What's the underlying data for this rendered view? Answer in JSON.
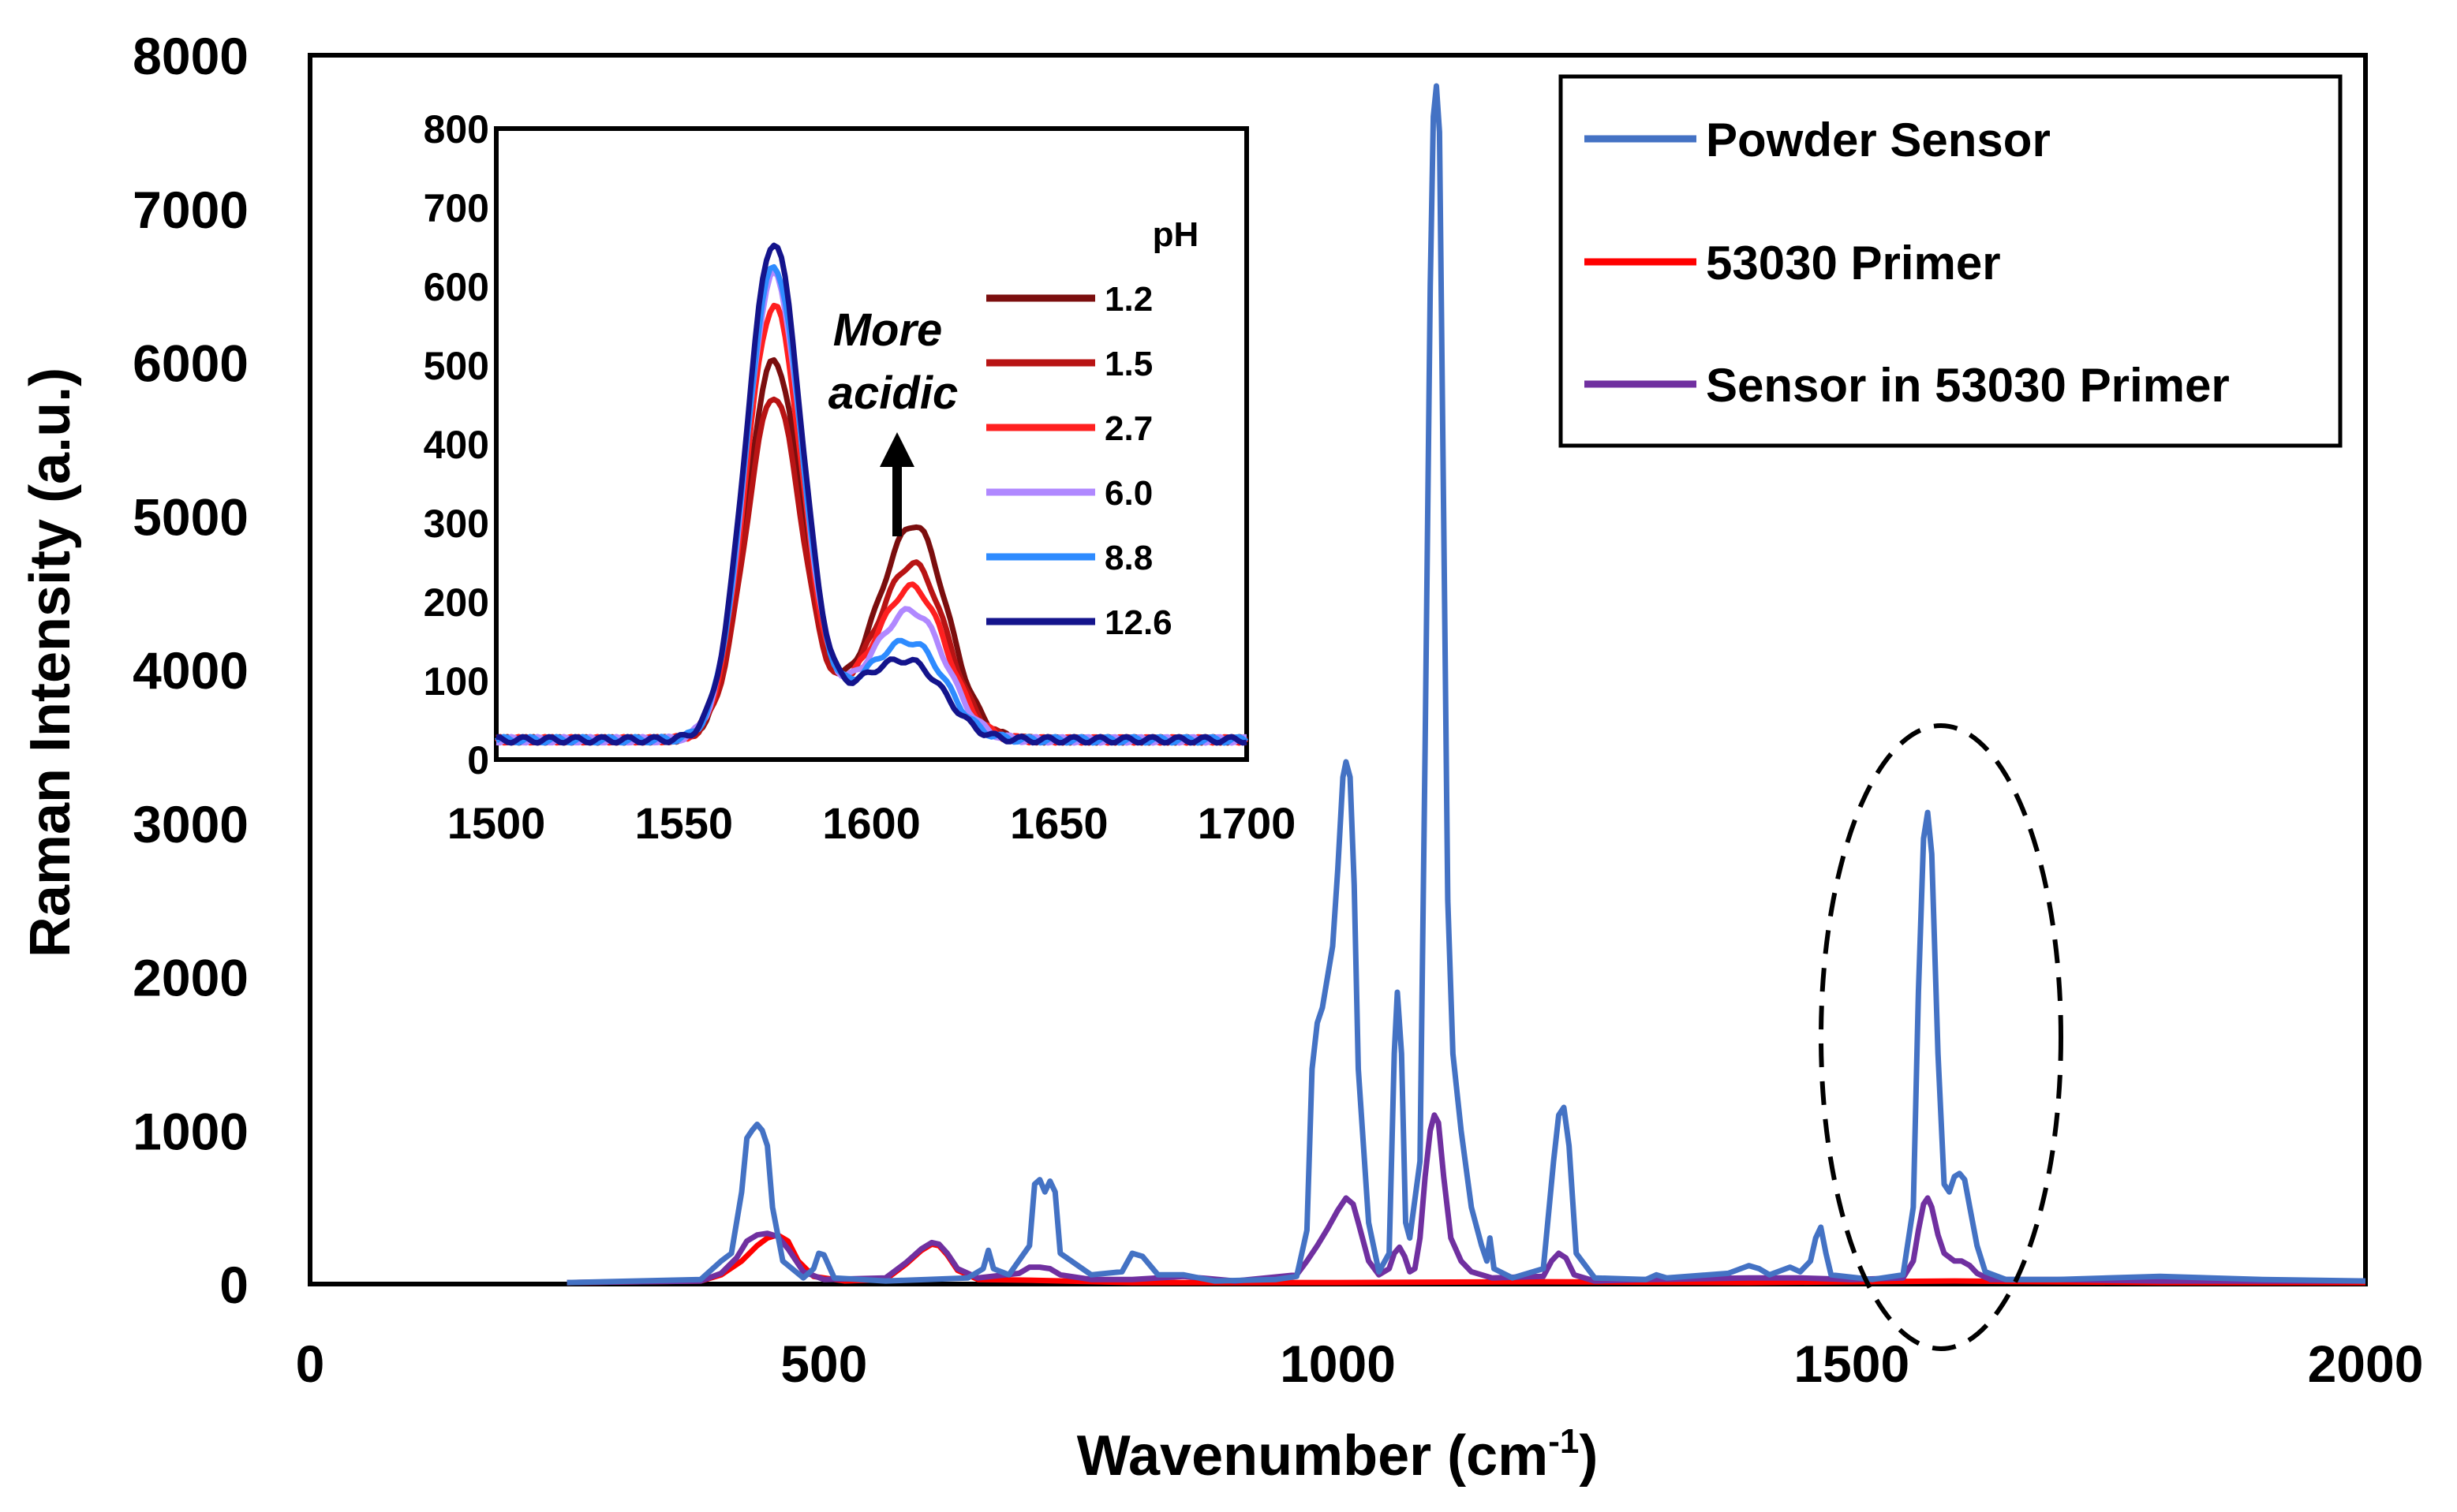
{
  "chart_data": [
    {
      "id": "main",
      "type": "line",
      "title": "",
      "xlabel": "Wavenumber (cm",
      "xlabel_sup": "-1",
      "xlabel_close": ")",
      "ylabel": "Raman Intensity (a.u.)",
      "xlim": [
        0,
        2000
      ],
      "ylim": [
        0,
        8000
      ],
      "xticks": [
        0,
        500,
        1000,
        1500,
        2000
      ],
      "yticks": [
        0,
        1000,
        2000,
        3000,
        4000,
        5000,
        6000,
        7000,
        8000
      ],
      "legend_position": "top-right",
      "series": [
        {
          "name": "Powder Sensor",
          "color": "#4472C4",
          "points": [
            [
              250,
              10
            ],
            [
              380,
              30
            ],
            [
              400,
              150
            ],
            [
              410,
              200
            ],
            [
              420,
              600
            ],
            [
              425,
              950
            ],
            [
              430,
              1000
            ],
            [
              435,
              1040
            ],
            [
              440,
              1000
            ],
            [
              445,
              900
            ],
            [
              450,
              500
            ],
            [
              460,
              150
            ],
            [
              480,
              40
            ],
            [
              490,
              100
            ],
            [
              495,
              200
            ],
            [
              500,
              190
            ],
            [
              510,
              40
            ],
            [
              560,
              20
            ],
            [
              600,
              30
            ],
            [
              640,
              40
            ],
            [
              655,
              100
            ],
            [
              660,
              220
            ],
            [
              665,
              100
            ],
            [
              680,
              60
            ],
            [
              700,
              250
            ],
            [
              705,
              650
            ],
            [
              710,
              680
            ],
            [
              715,
              600
            ],
            [
              720,
              670
            ],
            [
              725,
              600
            ],
            [
              730,
              200
            ],
            [
              760,
              60
            ],
            [
              790,
              80
            ],
            [
              800,
              200
            ],
            [
              810,
              180
            ],
            [
              825,
              60
            ],
            [
              850,
              60
            ],
            [
              880,
              20
            ],
            [
              940,
              30
            ],
            [
              960,
              50
            ],
            [
              970,
              350
            ],
            [
              975,
              1400
            ],
            [
              980,
              1700
            ],
            [
              985,
              1800
            ],
            [
              990,
              2000
            ],
            [
              995,
              2200
            ],
            [
              1000,
              2700
            ],
            [
              1005,
              3300
            ],
            [
              1008,
              3400
            ],
            [
              1012,
              3300
            ],
            [
              1016,
              2600
            ],
            [
              1020,
              1400
            ],
            [
              1030,
              400
            ],
            [
              1040,
              80
            ],
            [
              1050,
              200
            ],
            [
              1055,
              1500
            ],
            [
              1058,
              1900
            ],
            [
              1062,
              1500
            ],
            [
              1066,
              400
            ],
            [
              1070,
              300
            ],
            [
              1080,
              800
            ],
            [
              1085,
              3500
            ],
            [
              1090,
              6500
            ],
            [
              1093,
              7600
            ],
            [
              1096,
              7800
            ],
            [
              1099,
              7500
            ],
            [
              1103,
              5000
            ],
            [
              1107,
              2500
            ],
            [
              1112,
              1500
            ],
            [
              1120,
              1000
            ],
            [
              1130,
              500
            ],
            [
              1140,
              250
            ],
            [
              1145,
              150
            ],
            [
              1148,
              300
            ],
            [
              1152,
              100
            ],
            [
              1170,
              40
            ],
            [
              1200,
              100
            ],
            [
              1210,
              800
            ],
            [
              1215,
              1100
            ],
            [
              1220,
              1150
            ],
            [
              1225,
              900
            ],
            [
              1232,
              200
            ],
            [
              1250,
              40
            ],
            [
              1300,
              30
            ],
            [
              1310,
              60
            ],
            [
              1320,
              40
            ],
            [
              1380,
              70
            ],
            [
              1400,
              120
            ],
            [
              1410,
              100
            ],
            [
              1420,
              60
            ],
            [
              1440,
              110
            ],
            [
              1450,
              80
            ],
            [
              1460,
              150
            ],
            [
              1465,
              300
            ],
            [
              1470,
              370
            ],
            [
              1475,
              200
            ],
            [
              1480,
              60
            ],
            [
              1520,
              30
            ],
            [
              1550,
              60
            ],
            [
              1560,
              500
            ],
            [
              1565,
              1900
            ],
            [
              1570,
              2900
            ],
            [
              1574,
              3070
            ],
            [
              1578,
              2800
            ],
            [
              1584,
              1500
            ],
            [
              1590,
              650
            ],
            [
              1595,
              600
            ],
            [
              1600,
              700
            ],
            [
              1605,
              720
            ],
            [
              1610,
              680
            ],
            [
              1615,
              500
            ],
            [
              1622,
              250
            ],
            [
              1630,
              80
            ],
            [
              1650,
              30
            ],
            [
              1700,
              30
            ],
            [
              1800,
              50
            ],
            [
              1900,
              30
            ],
            [
              2000,
              20
            ]
          ]
        },
        {
          "name": "53030 Primer",
          "color": "#FF0000",
          "points": [
            [
              250,
              10
            ],
            [
              380,
              20
            ],
            [
              400,
              60
            ],
            [
              420,
              150
            ],
            [
              435,
              250
            ],
            [
              445,
              300
            ],
            [
              455,
              320
            ],
            [
              465,
              280
            ],
            [
              475,
              150
            ],
            [
              490,
              50
            ],
            [
              520,
              20
            ],
            [
              560,
              30
            ],
            [
              580,
              130
            ],
            [
              595,
              220
            ],
            [
              605,
              260
            ],
            [
              612,
              250
            ],
            [
              620,
              190
            ],
            [
              630,
              90
            ],
            [
              650,
              30
            ],
            [
              700,
              25
            ],
            [
              800,
              10
            ],
            [
              1000,
              10
            ],
            [
              1200,
              15
            ],
            [
              1400,
              10
            ],
            [
              1500,
              15
            ],
            [
              1600,
              20
            ],
            [
              1800,
              10
            ],
            [
              2000,
              10
            ]
          ]
        },
        {
          "name": "Sensor in 53030 Primer",
          "color": "#7030A0",
          "points": [
            [
              250,
              10
            ],
            [
              380,
              20
            ],
            [
              400,
              70
            ],
            [
              415,
              170
            ],
            [
              425,
              280
            ],
            [
              435,
              320
            ],
            [
              445,
              330
            ],
            [
              455,
              310
            ],
            [
              465,
              230
            ],
            [
              480,
              80
            ],
            [
              500,
              30
            ],
            [
              560,
              40
            ],
            [
              580,
              140
            ],
            [
              595,
              230
            ],
            [
              605,
              270
            ],
            [
              612,
              260
            ],
            [
              620,
              200
            ],
            [
              630,
              100
            ],
            [
              650,
              40
            ],
            [
              690,
              70
            ],
            [
              700,
              110
            ],
            [
              710,
              110
            ],
            [
              720,
              100
            ],
            [
              730,
              60
            ],
            [
              760,
              30
            ],
            [
              800,
              30
            ],
            [
              850,
              50
            ],
            [
              900,
              20
            ],
            [
              960,
              60
            ],
            [
              970,
              150
            ],
            [
              980,
              250
            ],
            [
              990,
              360
            ],
            [
              1000,
              480
            ],
            [
              1008,
              560
            ],
            [
              1015,
              520
            ],
            [
              1020,
              400
            ],
            [
              1030,
              150
            ],
            [
              1040,
              60
            ],
            [
              1050,
              100
            ],
            [
              1055,
              200
            ],
            [
              1060,
              240
            ],
            [
              1065,
              180
            ],
            [
              1070,
              80
            ],
            [
              1075,
              100
            ],
            [
              1080,
              300
            ],
            [
              1085,
              700
            ],
            [
              1090,
              1000
            ],
            [
              1094,
              1100
            ],
            [
              1098,
              1050
            ],
            [
              1103,
              700
            ],
            [
              1110,
              300
            ],
            [
              1120,
              150
            ],
            [
              1130,
              80
            ],
            [
              1150,
              40
            ],
            [
              1200,
              50
            ],
            [
              1208,
              150
            ],
            [
              1215,
              200
            ],
            [
              1222,
              170
            ],
            [
              1230,
              60
            ],
            [
              1250,
              20
            ],
            [
              1300,
              30
            ],
            [
              1400,
              40
            ],
            [
              1450,
              40
            ],
            [
              1500,
              30
            ],
            [
              1550,
              40
            ],
            [
              1560,
              150
            ],
            [
              1565,
              350
            ],
            [
              1570,
              520
            ],
            [
              1574,
              560
            ],
            [
              1578,
              500
            ],
            [
              1584,
              320
            ],
            [
              1590,
              200
            ],
            [
              1600,
              150
            ],
            [
              1607,
              150
            ],
            [
              1615,
              120
            ],
            [
              1622,
              70
            ],
            [
              1635,
              30
            ],
            [
              1700,
              30
            ],
            [
              1800,
              20
            ],
            [
              1900,
              20
            ],
            [
              2000,
              20
            ]
          ]
        }
      ]
    },
    {
      "id": "inset",
      "type": "line",
      "title": "",
      "xlim": [
        1500,
        1700
      ],
      "ylim": [
        0,
        800
      ],
      "xticks": [
        1500,
        1550,
        1600,
        1650,
        1700
      ],
      "yticks": [
        0,
        100,
        200,
        300,
        400,
        500,
        600,
        700,
        800
      ],
      "legend_title": "pH",
      "annotation": [
        "More",
        "acidic"
      ],
      "series": [
        {
          "name": "1.2",
          "color": "#7B0E0E",
          "peak1": 480,
          "peak2": 260
        },
        {
          "name": "1.5",
          "color": "#B81414",
          "peak1": 435,
          "peak2": 210
        },
        {
          "name": "2.7",
          "color": "#FF2020",
          "peak1": 550,
          "peak2": 180
        },
        {
          "name": "6.0",
          "color": "#B088FF",
          "peak1": 590,
          "peak2": 150
        },
        {
          "name": "8.8",
          "color": "#2E8BFF",
          "peak1": 600,
          "peak2": 110
        },
        {
          "name": "12.6",
          "color": "#14148C",
          "peak1": 630,
          "peak2": 85
        }
      ]
    }
  ]
}
